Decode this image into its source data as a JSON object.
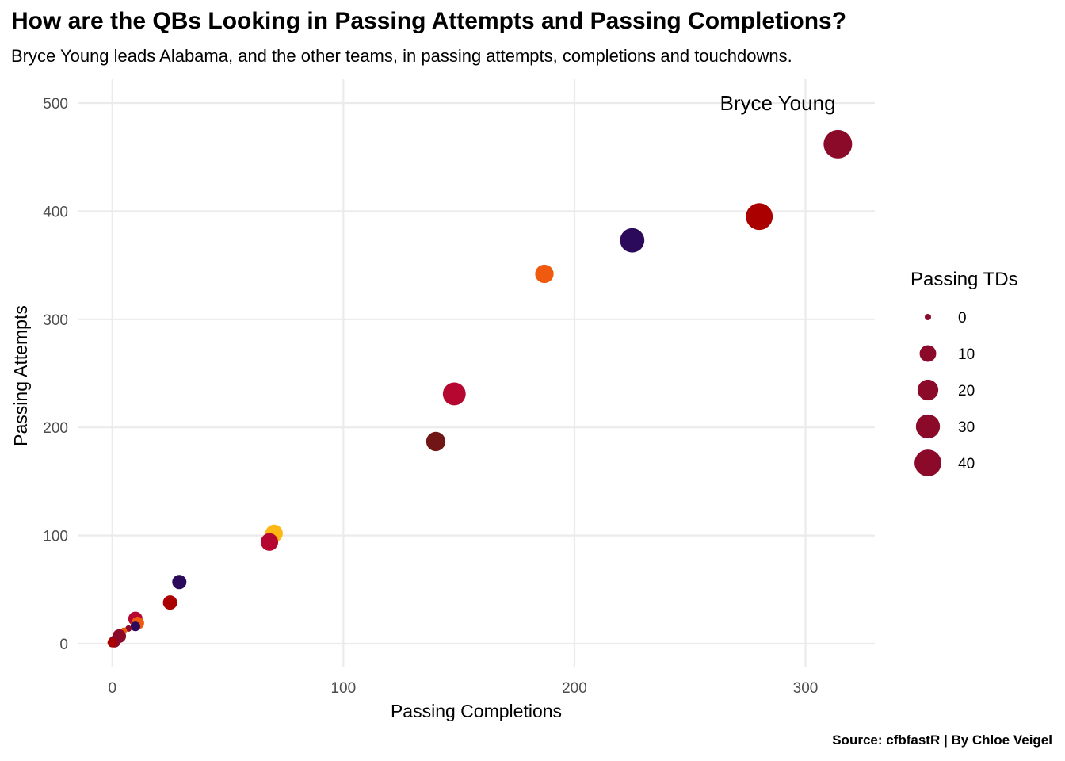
{
  "chart_data": {
    "type": "scatter",
    "title": "How are the QBs Looking in Passing Attempts and Passing Completions?",
    "subtitle": "Bryce Young leads Alabama, and the other teams, in passing attempts, completions and touchdowns.",
    "xlabel": "Passing Completions",
    "ylabel": "Passing Attempts",
    "caption": "Source: cfbfastR | By Chloe Veigel",
    "xlim": [
      -15,
      330
    ],
    "ylim": [
      -22,
      522
    ],
    "xticks": [
      0,
      100,
      200,
      300
    ],
    "yticks": [
      0,
      100,
      200,
      300,
      400,
      500
    ],
    "grid": true,
    "legend": {
      "title": "Passing TDs",
      "position": "right",
      "values": [
        0,
        10,
        20,
        30,
        40
      ]
    },
    "annotation": {
      "text": "Bryce Young",
      "x": 288,
      "y": 500
    },
    "points": [
      {
        "x": 314,
        "y": 462,
        "td": 47,
        "color": "#8B0A2A"
      },
      {
        "x": 280,
        "y": 395,
        "td": 40,
        "color": "#AA0000"
      },
      {
        "x": 225,
        "y": 373,
        "td": 31,
        "color": "#2B0A5C"
      },
      {
        "x": 187,
        "y": 342,
        "td": 14,
        "color": "#F05A0F"
      },
      {
        "x": 148,
        "y": 231,
        "td": 26,
        "color": "#B5072F"
      },
      {
        "x": 140,
        "y": 187,
        "td": 16,
        "color": "#701616"
      },
      {
        "x": 70,
        "y": 102,
        "td": 12,
        "color": "#FDB813"
      },
      {
        "x": 68,
        "y": 94,
        "td": 12,
        "color": "#B5072F"
      },
      {
        "x": 29,
        "y": 57,
        "td": 6,
        "color": "#2B0A5C"
      },
      {
        "x": 25,
        "y": 38,
        "td": 6,
        "color": "#AA0000"
      },
      {
        "x": 10,
        "y": 23,
        "td": 6,
        "color": "#B5072F"
      },
      {
        "x": 11,
        "y": 19,
        "td": 4,
        "color": "#F05A0F"
      },
      {
        "x": 10,
        "y": 16,
        "td": 1,
        "color": "#2B0A5C"
      },
      {
        "x": 7,
        "y": 14,
        "td": 0,
        "color": "#8B0A2A"
      },
      {
        "x": 5,
        "y": 12,
        "td": 0,
        "color": "#F05A0F"
      },
      {
        "x": 3,
        "y": 7,
        "td": 5,
        "color": "#8B0A2A"
      },
      {
        "x": 1,
        "y": 2,
        "td": 3,
        "color": "#8B0A2A"
      },
      {
        "x": 0,
        "y": 1,
        "td": 1,
        "color": "#AA0000"
      }
    ]
  }
}
